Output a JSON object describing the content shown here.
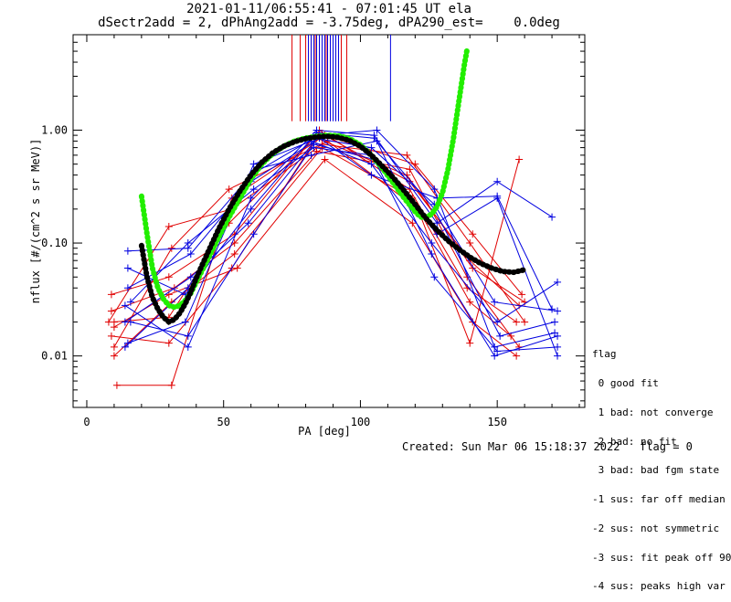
{
  "title_line1": "2021-01-11/06:55:41 - 07:01:45 UT ela",
  "title_line2": "dSectr2add = 2, dPhAng2add = -3.75deg, dPA290_est=    0.0deg",
  "footer": {
    "created": "Created: Sun Mar 06 15:18:37 2022",
    "flag": "flag = 0"
  },
  "legend": {
    "title": "flag",
    "entries": [
      " 0 good fit",
      " 1 bad: not converge",
      " 2 bad: no fit",
      " 3 bad: bad fgm state",
      "-1 sus: far off median",
      "-2 sus: not symmetric",
      "-3 sus: fit peak off 90",
      "-4 sus: peaks high var"
    ]
  },
  "colors": {
    "red": "#e00000",
    "blue": "#0000e0",
    "green": "#22ee00",
    "black": "#000000"
  },
  "chart_data": {
    "type": "line",
    "xlabel": "PA [deg]",
    "ylabel": "nflux [#/(cm^2 s sr MeV)]",
    "xlim": [
      -5,
      182
    ],
    "ylim": [
      0.0035,
      7.0
    ],
    "yscale": "log",
    "xticks": [
      0,
      50,
      100,
      150
    ],
    "yticks": [
      0.01,
      0.1,
      1.0
    ],
    "ytick_labels": [
      "0.01",
      "0.10",
      "1.00"
    ],
    "series": [
      {
        "color": "red",
        "points": [
          [
            10,
            0.02
          ],
          [
            30,
            0.022
          ],
          [
            52,
            0.15
          ],
          [
            85,
            0.95
          ],
          [
            118,
            0.35
          ],
          [
            140,
            0.07
          ],
          [
            158,
            0.028
          ]
        ]
      },
      {
        "color": "red",
        "points": [
          [
            9,
            0.015
          ],
          [
            30,
            0.013
          ],
          [
            53,
            0.06
          ],
          [
            84,
            0.85
          ],
          [
            117,
            0.4
          ],
          [
            141,
            0.06
          ],
          [
            160,
            0.03
          ]
        ]
      },
      {
        "color": "red",
        "points": [
          [
            10,
            0.01
          ],
          [
            31,
            0.03
          ],
          [
            54,
            0.08
          ],
          [
            86,
            0.7
          ],
          [
            119,
            0.25
          ],
          [
            140,
            0.03
          ],
          [
            155,
            0.015
          ]
        ]
      },
      {
        "color": "red",
        "points": [
          [
            11,
            0.0055
          ],
          [
            31,
            0.0055
          ],
          [
            53,
            0.25
          ],
          [
            87,
            0.9
          ],
          [
            120,
            0.5
          ],
          [
            141,
            0.12
          ],
          [
            159,
            0.035
          ]
        ]
      },
      {
        "color": "red",
        "points": [
          [
            9,
            0.035
          ],
          [
            30,
            0.05
          ],
          [
            54,
            0.12
          ],
          [
            85,
            1.0
          ],
          [
            118,
            0.3
          ],
          [
            139,
            0.04
          ],
          [
            157,
            0.02
          ]
        ]
      },
      {
        "color": "red",
        "points": [
          [
            10,
            0.012
          ],
          [
            31,
            0.09
          ],
          [
            52,
            0.3
          ],
          [
            88,
            0.8
          ],
          [
            121,
            0.2
          ],
          [
            140,
            0.013
          ],
          [
            158,
            0.55
          ]
        ]
      },
      {
        "color": "red",
        "points": [
          [
            8,
            0.02
          ],
          [
            30,
            0.14
          ],
          [
            53,
            0.2
          ],
          [
            86,
            0.75
          ],
          [
            117,
            0.6
          ],
          [
            140,
            0.1
          ],
          [
            160,
            0.02
          ]
        ]
      },
      {
        "color": "red",
        "points": [
          [
            9,
            0.025
          ],
          [
            32,
            0.04
          ],
          [
            54,
            0.1
          ],
          [
            84,
            0.65
          ],
          [
            118,
            0.45
          ],
          [
            139,
            0.05
          ],
          [
            158,
            0.012
          ]
        ]
      },
      {
        "color": "red",
        "points": [
          [
            10,
            0.018
          ],
          [
            30,
            0.035
          ],
          [
            55,
            0.06
          ],
          [
            87,
            0.55
          ],
          [
            119,
            0.15
          ],
          [
            141,
            0.02
          ],
          [
            157,
            0.01
          ]
        ]
      },
      {
        "color": "blue",
        "points": [
          [
            15,
            0.085
          ],
          [
            37,
            0.09
          ],
          [
            60,
            0.4
          ],
          [
            83,
            0.85
          ],
          [
            104,
            0.7
          ],
          [
            127,
            0.22
          ],
          [
            149,
            0.03
          ],
          [
            172,
            0.025
          ]
        ]
      },
      {
        "color": "blue",
        "points": [
          [
            14,
            0.028
          ],
          [
            37,
            0.012
          ],
          [
            60,
            0.25
          ],
          [
            84,
            1.0
          ],
          [
            105,
            0.9
          ],
          [
            128,
            0.15
          ],
          [
            150,
            0.35
          ],
          [
            170,
            0.17
          ]
        ]
      },
      {
        "color": "blue",
        "points": [
          [
            15,
            0.013
          ],
          [
            36,
            0.02
          ],
          [
            61,
            0.5
          ],
          [
            82,
            0.8
          ],
          [
            104,
            0.5
          ],
          [
            126,
            0.1
          ],
          [
            150,
            0.02
          ],
          [
            172,
            0.045
          ]
        ]
      },
      {
        "color": "blue",
        "points": [
          [
            14,
            0.02
          ],
          [
            38,
            0.05
          ],
          [
            59,
            0.15
          ],
          [
            85,
            0.9
          ],
          [
            106,
            1.0
          ],
          [
            127,
            0.3
          ],
          [
            149,
            0.012
          ],
          [
            171,
            0.016
          ]
        ]
      },
      {
        "color": "blue",
        "points": [
          [
            16,
            0.03
          ],
          [
            37,
            0.1
          ],
          [
            61,
            0.3
          ],
          [
            83,
            0.7
          ],
          [
            104,
            0.6
          ],
          [
            128,
            0.12
          ],
          [
            150,
            0.25
          ],
          [
            172,
            0.01
          ]
        ]
      },
      {
        "color": "blue",
        "points": [
          [
            15,
            0.06
          ],
          [
            36,
            0.035
          ],
          [
            60,
            0.2
          ],
          [
            84,
            0.95
          ],
          [
            105,
            0.85
          ],
          [
            127,
            0.2
          ],
          [
            151,
            0.015
          ],
          [
            171,
            0.02
          ]
        ]
      },
      {
        "color": "blue",
        "points": [
          [
            14,
            0.012
          ],
          [
            37,
            0.04
          ],
          [
            62,
            0.45
          ],
          [
            82,
            0.6
          ],
          [
            106,
            0.8
          ],
          [
            126,
            0.08
          ],
          [
            149,
            0.01
          ],
          [
            172,
            0.015
          ]
        ]
      },
      {
        "color": "blue",
        "points": [
          [
            15,
            0.04
          ],
          [
            38,
            0.08
          ],
          [
            60,
            0.35
          ],
          [
            85,
            0.85
          ],
          [
            104,
            0.4
          ],
          [
            128,
            0.25
          ],
          [
            150,
            0.26
          ],
          [
            170,
            0.026
          ]
        ]
      },
      {
        "color": "blue",
        "points": [
          [
            16,
            0.02
          ],
          [
            37,
            0.015
          ],
          [
            61,
            0.12
          ],
          [
            83,
            0.75
          ],
          [
            105,
            0.55
          ],
          [
            127,
            0.05
          ],
          [
            150,
            0.011
          ],
          [
            172,
            0.012
          ]
        ]
      },
      {
        "color": "green",
        "points": [
          [
            20,
            0.26
          ],
          [
            22,
            0.12
          ],
          [
            24,
            0.06
          ],
          [
            26,
            0.04
          ],
          [
            28,
            0.032
          ],
          [
            30,
            0.028
          ],
          [
            32,
            0.027
          ],
          [
            34,
            0.028
          ],
          [
            36,
            0.031
          ],
          [
            38,
            0.036
          ],
          [
            40,
            0.045
          ],
          [
            44,
            0.07
          ],
          [
            48,
            0.11
          ],
          [
            52,
            0.17
          ],
          [
            56,
            0.25
          ],
          [
            60,
            0.37
          ],
          [
            64,
            0.5
          ],
          [
            68,
            0.62
          ],
          [
            72,
            0.72
          ],
          [
            76,
            0.8
          ],
          [
            80,
            0.85
          ],
          [
            84,
            0.88
          ],
          [
            88,
            0.9
          ],
          [
            92,
            0.89
          ],
          [
            96,
            0.84
          ],
          [
            100,
            0.74
          ],
          [
            104,
            0.6
          ],
          [
            108,
            0.46
          ],
          [
            112,
            0.34
          ],
          [
            116,
            0.25
          ],
          [
            120,
            0.19
          ],
          [
            122,
            0.17
          ],
          [
            124,
            0.17
          ],
          [
            126,
            0.18
          ],
          [
            128,
            0.21
          ],
          [
            130,
            0.28
          ],
          [
            132,
            0.45
          ],
          [
            134,
            0.85
          ],
          [
            136,
            1.8
          ],
          [
            138,
            3.8
          ],
          [
            139,
            5.2
          ]
        ]
      },
      {
        "color": "black",
        "points": [
          [
            20,
            0.095
          ],
          [
            22,
            0.05
          ],
          [
            24,
            0.033
          ],
          [
            26,
            0.026
          ],
          [
            28,
            0.022
          ],
          [
            30,
            0.02
          ],
          [
            32,
            0.021
          ],
          [
            34,
            0.024
          ],
          [
            36,
            0.029
          ],
          [
            38,
            0.037
          ],
          [
            40,
            0.049
          ],
          [
            44,
            0.08
          ],
          [
            48,
            0.13
          ],
          [
            52,
            0.2
          ],
          [
            56,
            0.29
          ],
          [
            60,
            0.4
          ],
          [
            64,
            0.52
          ],
          [
            68,
            0.63
          ],
          [
            72,
            0.72
          ],
          [
            76,
            0.79
          ],
          [
            80,
            0.84
          ],
          [
            84,
            0.87
          ],
          [
            88,
            0.88
          ],
          [
            92,
            0.86
          ],
          [
            96,
            0.81
          ],
          [
            100,
            0.72
          ],
          [
            104,
            0.6
          ],
          [
            108,
            0.48
          ],
          [
            112,
            0.38
          ],
          [
            116,
            0.29
          ],
          [
            120,
            0.22
          ],
          [
            124,
            0.165
          ],
          [
            128,
            0.13
          ],
          [
            132,
            0.105
          ],
          [
            136,
            0.088
          ],
          [
            140,
            0.075
          ],
          [
            144,
            0.066
          ],
          [
            148,
            0.06
          ],
          [
            152,
            0.056
          ],
          [
            156,
            0.055
          ],
          [
            160,
            0.058
          ]
        ]
      }
    ],
    "peak_markers": {
      "red_x": [
        75,
        78,
        80,
        82,
        83.5,
        85,
        86,
        87.5,
        89,
        91,
        93,
        95
      ],
      "blue_x": [
        81,
        82,
        83,
        84,
        85,
        86,
        87,
        88,
        89,
        90,
        91,
        92,
        111
      ]
    }
  }
}
